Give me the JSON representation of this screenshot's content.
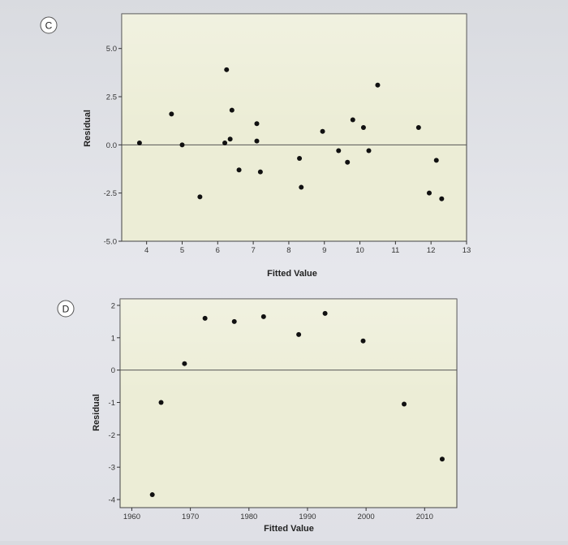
{
  "colors": {
    "plot_bg": "#ecedd6",
    "point": "#111111",
    "axis": "#333333",
    "label_bg": "#ffffff"
  },
  "chart_data": [
    {
      "id": "C",
      "type": "scatter",
      "panel_label": "C",
      "xlabel": "Fitted Value",
      "ylabel": "Residual",
      "xlim": [
        3.3,
        13
      ],
      "ylim": [
        -5.0,
        6.8
      ],
      "xticks": [
        "4",
        "5",
        "6",
        "7",
        "8",
        "9",
        "10",
        "11",
        "12",
        "13"
      ],
      "yticks": [
        "5.0",
        "2.5",
        "0.0",
        "-2.5",
        "-5.0"
      ],
      "reference_line": 0,
      "x": [
        3.8,
        4.7,
        5.0,
        5.5,
        6.2,
        6.25,
        6.35,
        6.4,
        6.6,
        7.1,
        7.1,
        7.2,
        8.3,
        8.35,
        8.95,
        9.4,
        9.65,
        9.8,
        10.1,
        10.25,
        10.5,
        11.65,
        11.95,
        12.15,
        12.3
      ],
      "y": [
        0.1,
        1.6,
        0.0,
        -2.7,
        0.1,
        3.9,
        0.3,
        1.8,
        -1.3,
        1.1,
        0.2,
        -1.4,
        -0.7,
        -2.2,
        0.7,
        -0.3,
        -0.9,
        1.3,
        0.9,
        -0.3,
        3.1,
        0.9,
        -2.5,
        -0.8,
        -2.8
      ]
    },
    {
      "id": "D",
      "type": "scatter",
      "panel_label": "D",
      "xlabel": "Fitted Value",
      "ylabel": "Residual",
      "xlim": [
        1958,
        2015.5
      ],
      "ylim": [
        -4.25,
        2.2
      ],
      "xticks": [
        "1960",
        "1970",
        "1980",
        "1990",
        "2000",
        "2010"
      ],
      "yticks": [
        "2",
        "1",
        "0",
        "-1",
        "-2",
        "-3",
        "-4"
      ],
      "reference_line": 0,
      "x": [
        1963.5,
        1965,
        1969,
        1972.5,
        1977.5,
        1982.5,
        1988.5,
        1993,
        1999.5,
        2006.5,
        2013
      ],
      "y": [
        -3.85,
        -1.0,
        0.2,
        1.6,
        1.5,
        1.65,
        1.1,
        1.75,
        0.9,
        -1.05,
        -2.75
      ]
    }
  ]
}
